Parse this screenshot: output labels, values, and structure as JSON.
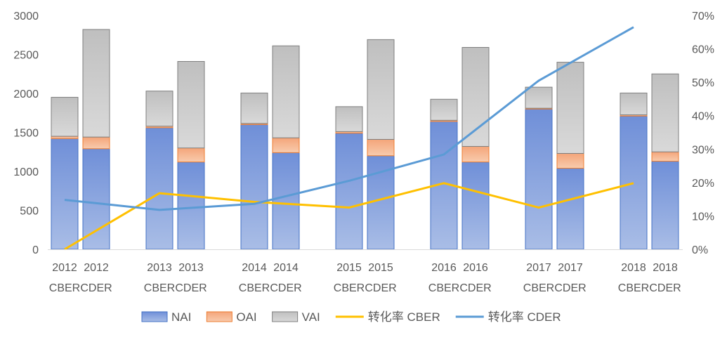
{
  "chart_data": {
    "type": "bar",
    "stacked": true,
    "categories": [
      [
        "2012",
        "CBER"
      ],
      [
        "2012",
        "CDER"
      ],
      [
        "2013",
        "CBER"
      ],
      [
        "2013",
        "CDER"
      ],
      [
        "2014",
        "CBER"
      ],
      [
        "2014",
        "CDER"
      ],
      [
        "2015",
        "CBER"
      ],
      [
        "2015",
        "CDER"
      ],
      [
        "2016",
        "CBER"
      ],
      [
        "2016",
        "CDER"
      ],
      [
        "2017",
        "CBER"
      ],
      [
        "2017",
        "CDER"
      ],
      [
        "2018",
        "CBER"
      ],
      [
        "2018",
        "CDER"
      ]
    ],
    "series": [
      {
        "name": "NAI",
        "kind": "bar",
        "axis": "left",
        "color": "#8faadc",
        "values": [
          1420,
          1290,
          1560,
          1120,
          1600,
          1240,
          1490,
          1200,
          1640,
          1120,
          1800,
          1040,
          1710,
          1130
        ]
      },
      {
        "name": "OAI",
        "kind": "bar",
        "axis": "left",
        "color": "#f4b183",
        "values": [
          30,
          150,
          20,
          180,
          15,
          190,
          20,
          210,
          15,
          200,
          10,
          190,
          15,
          120
        ]
      },
      {
        "name": "VAI",
        "kind": "bar",
        "axis": "left",
        "color": "#c9c9c9",
        "values": [
          500,
          1380,
          450,
          1110,
          390,
          1180,
          320,
          1280,
          270,
          1270,
          270,
          1170,
          280,
          1000
        ]
      },
      {
        "name": "转化率 CBER",
        "kind": "line",
        "axis": "right",
        "color": "#ffc000",
        "x": [
          0,
          2,
          4,
          6,
          8,
          10,
          12
        ],
        "values": [
          0.0,
          0.168,
          0.142,
          0.125,
          0.198,
          0.125,
          0.198
        ]
      },
      {
        "name": "转化率 CDER",
        "kind": "line",
        "axis": "right",
        "color": "#5b9bd5",
        "x": [
          0,
          2,
          4,
          6,
          8,
          10,
          12
        ],
        "values": [
          0.148,
          0.118,
          0.136,
          0.205,
          0.284,
          0.505,
          0.665
        ]
      }
    ],
    "ylim": [
      0,
      3000
    ],
    "y_ticks": [
      0,
      500,
      1000,
      1500,
      2000,
      2500,
      3000
    ],
    "y2lim": [
      0,
      0.7
    ],
    "y2_ticks": [
      "0%",
      "10%",
      "20%",
      "30%",
      "40%",
      "50%",
      "60%",
      "70%"
    ],
    "grid": false,
    "legend_position": "bottom"
  }
}
